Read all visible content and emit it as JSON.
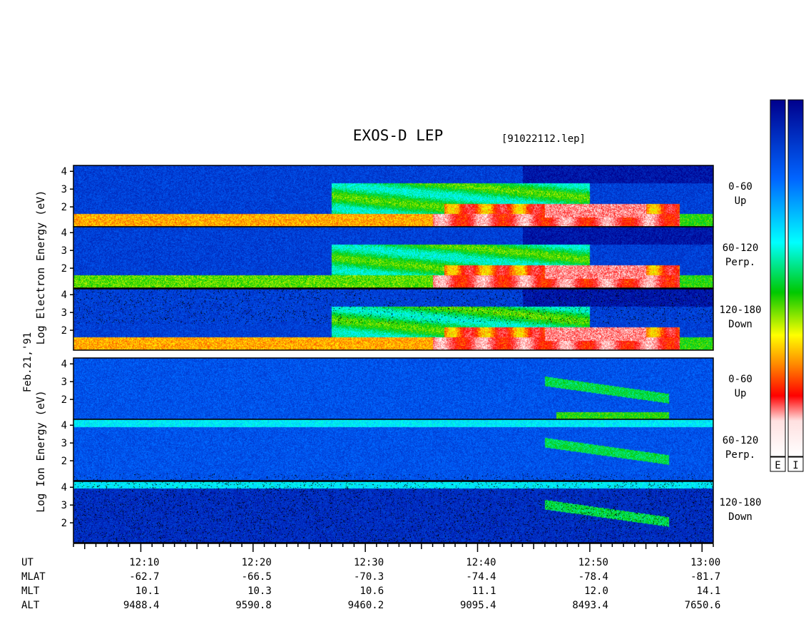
{
  "chart_data": {
    "type": "heatmap",
    "title": "EXOS-D LEP",
    "file_label": "[91022112.lep]",
    "date_label": "Feb.21,'91",
    "scale": "log",
    "colorbar": {
      "colors": [
        "#ffffff",
        "#ff0000",
        "#ff8c00",
        "#ffff00",
        "#00c800",
        "#00ffff",
        "#0064ff",
        "#00008c"
      ],
      "labels": [
        "E",
        "I"
      ],
      "orientation": "vertical"
    },
    "x_axis": {
      "tick_labels": [
        "12:10",
        "12:20",
        "12:30",
        "12:40",
        "12:50",
        "13:00"
      ],
      "range": [
        "12:04",
        "13:01"
      ]
    },
    "orbit_table": {
      "row_labels": [
        "UT",
        "MLAT",
        "MLT",
        "ALT"
      ],
      "columns": [
        {
          "UT": "12:10",
          "MLAT": "-62.7",
          "MLT": "10.1",
          "ALT": "9488.4"
        },
        {
          "UT": "12:20",
          "MLAT": "-66.5",
          "MLT": "10.3",
          "ALT": "9590.8"
        },
        {
          "UT": "12:30",
          "MLAT": "-70.3",
          "MLT": "10.6",
          "ALT": "9460.2"
        },
        {
          "UT": "12:40",
          "MLAT": "-74.4",
          "MLT": "11.1",
          "ALT": "9095.4"
        },
        {
          "UT": "12:50",
          "MLAT": "-78.4",
          "MLT": "12.0",
          "ALT": "8493.4"
        },
        {
          "UT": "13:00",
          "MLAT": "-81.7",
          "MLT": "14.1",
          "ALT": "7650.6"
        }
      ]
    },
    "groups": [
      {
        "species": "electron",
        "ylabel": "Log Electron Energy (eV)",
        "panels": [
          {
            "pitch": "0-60",
            "dir": "Up",
            "yticks": [
              "4",
              "3",
              "2"
            ],
            "ylim": [
              1,
              4.2
            ]
          },
          {
            "pitch": "60-120",
            "dir": "Perp.",
            "yticks": [
              "4",
              "3",
              "2"
            ],
            "ylim": [
              1,
              4.2
            ]
          },
          {
            "pitch": "120-180",
            "dir": "Down",
            "yticks": [
              "4",
              "3",
              "2"
            ],
            "ylim": [
              1,
              4.2
            ]
          }
        ]
      },
      {
        "species": "ion",
        "ylabel": "Log Ion Energy (eV)",
        "panels": [
          {
            "pitch": "0-60",
            "dir": "Up",
            "yticks": [
              "4",
              "3",
              "2"
            ],
            "ylim": [
              1,
              4.2
            ]
          },
          {
            "pitch": "60-120",
            "dir": "Perp.",
            "yticks": [
              "4",
              "3",
              "2"
            ],
            "ylim": [
              1,
              4.2
            ]
          },
          {
            "pitch": "120-180",
            "dir": "Down",
            "yticks": [
              "4",
              "3",
              "2"
            ],
            "ylim": [
              1,
              4.2
            ]
          }
        ]
      }
    ]
  }
}
